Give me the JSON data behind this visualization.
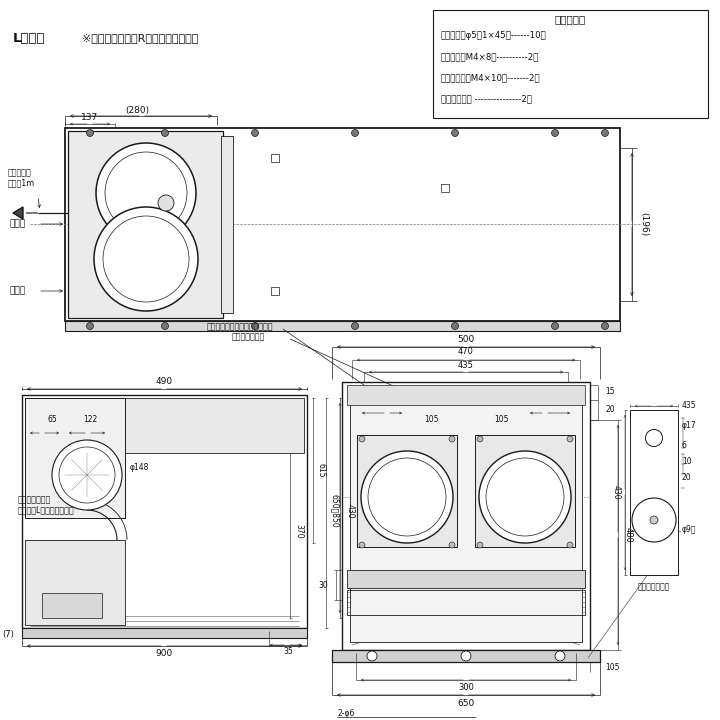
{
  "bg": "#ffffff",
  "lc": "#1a1a1a",
  "title": "Lタイプ　※下記寸法以外はRタイプに準ずる。",
  "acc_title": "付　属　品",
  "acc_items": [
    "座付ねじ（φ5．1×45）------10本",
    "化粧ねじ（M4×8）----------2本",
    "トラスねじ（M4×10）-------2本",
    "ソフトテープ ---------------2本"
  ],
  "note": "※下記寸法以外はRタイプに準ずる。"
}
